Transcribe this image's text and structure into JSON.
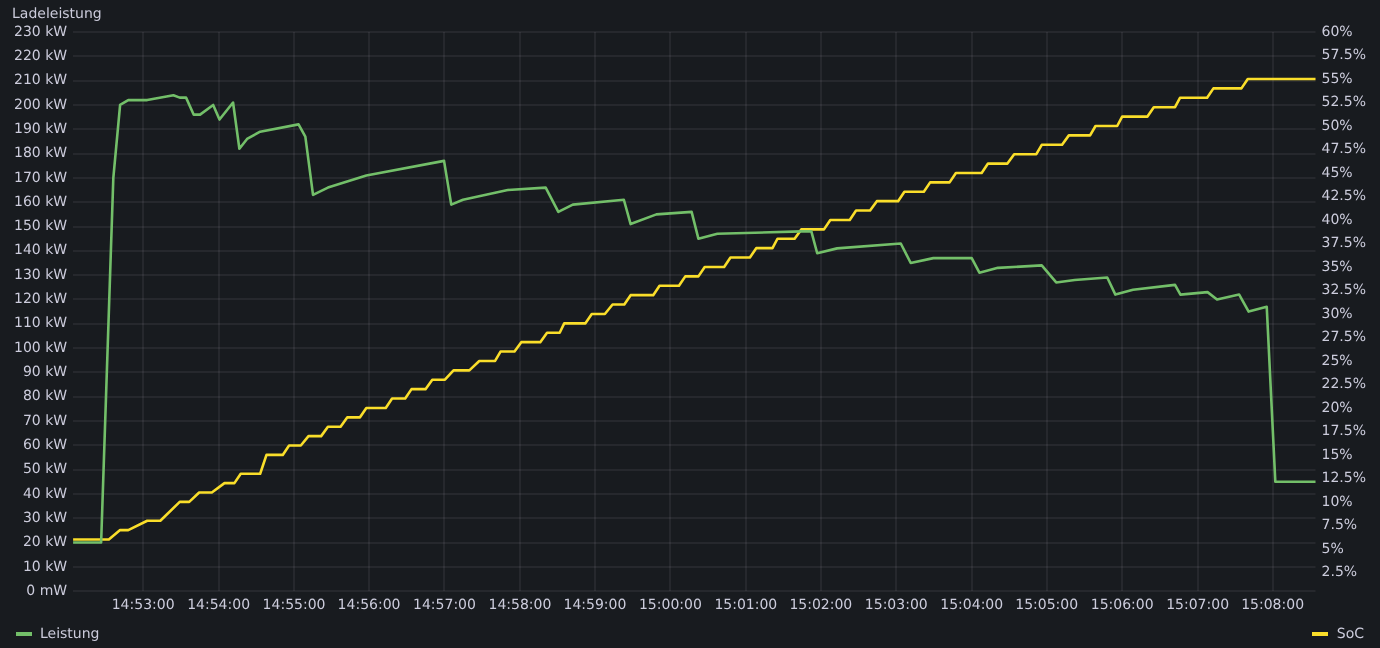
{
  "chart_data": {
    "type": "line",
    "title": "Ladeleistung",
    "xlim": [
      14.8678,
      15.1428
    ],
    "xticks": [
      {
        "value": 14.8833,
        "label": "14:53:00"
      },
      {
        "value": 14.9,
        "label": "14:54:00"
      },
      {
        "value": 14.9167,
        "label": "14:55:00"
      },
      {
        "value": 14.9333,
        "label": "14:56:00"
      },
      {
        "value": 14.95,
        "label": "14:57:00"
      },
      {
        "value": 14.9667,
        "label": "14:58:00"
      },
      {
        "value": 14.9833,
        "label": "14:59:00"
      },
      {
        "value": 15,
        "label": "15:00:00"
      },
      {
        "value": 15.0167,
        "label": "15:01:00"
      },
      {
        "value": 15.0333,
        "label": "15:02:00"
      },
      {
        "value": 15.05,
        "label": "15:03:00"
      },
      {
        "value": 15.0667,
        "label": "15:04:00"
      },
      {
        "value": 15.0833,
        "label": "15:05:00"
      },
      {
        "value": 15.1,
        "label": "15:06:00"
      },
      {
        "value": 15.1167,
        "label": "15:07:00"
      },
      {
        "value": 15.1333,
        "label": "15:08:00"
      }
    ],
    "ylim": [
      0,
      230
    ],
    "yticks": [
      {
        "value": 0,
        "label": "0 mW"
      },
      {
        "value": 10,
        "label": "10 kW"
      },
      {
        "value": 20,
        "label": "20 kW"
      },
      {
        "value": 30,
        "label": "30 kW"
      },
      {
        "value": 40,
        "label": "40 kW"
      },
      {
        "value": 50,
        "label": "50 kW"
      },
      {
        "value": 60,
        "label": "60 kW"
      },
      {
        "value": 70,
        "label": "70 kW"
      },
      {
        "value": 80,
        "label": "80 kW"
      },
      {
        "value": 90,
        "label": "90 kW"
      },
      {
        "value": 100,
        "label": "100 kW"
      },
      {
        "value": 110,
        "label": "110 kW"
      },
      {
        "value": 120,
        "label": "120 kW"
      },
      {
        "value": 130,
        "label": "130 kW"
      },
      {
        "value": 140,
        "label": "140 kW"
      },
      {
        "value": 150,
        "label": "150 kW"
      },
      {
        "value": 160,
        "label": "160 kW"
      },
      {
        "value": 170,
        "label": "170 kW"
      },
      {
        "value": 180,
        "label": "180 kW"
      },
      {
        "value": 190,
        "label": "190 kW"
      },
      {
        "value": 200,
        "label": "200 kW"
      },
      {
        "value": 210,
        "label": "210 kW"
      },
      {
        "value": 220,
        "label": "220 kW"
      },
      {
        "value": 230,
        "label": "230 kW"
      }
    ],
    "y2lim": [
      0.5,
      60
    ],
    "y2ticks": [
      {
        "value": 2.5,
        "label": "2.5%"
      },
      {
        "value": 5,
        "label": "5%"
      },
      {
        "value": 7.5,
        "label": "7.5%"
      },
      {
        "value": 10,
        "label": "10%"
      },
      {
        "value": 12.5,
        "label": "12.5%"
      },
      {
        "value": 15,
        "label": "15%"
      },
      {
        "value": 17.5,
        "label": "17.5%"
      },
      {
        "value": 20,
        "label": "20%"
      },
      {
        "value": 22.5,
        "label": "22.5%"
      },
      {
        "value": 25,
        "label": "25%"
      },
      {
        "value": 27.5,
        "label": "27.5%"
      },
      {
        "value": 30,
        "label": "30%"
      },
      {
        "value": 32.5,
        "label": "32.5%"
      },
      {
        "value": 35,
        "label": "35%"
      },
      {
        "value": 37.5,
        "label": "37.5%"
      },
      {
        "value": 40,
        "label": "40%"
      },
      {
        "value": 42.5,
        "label": "42.5%"
      },
      {
        "value": 45,
        "label": "45%"
      },
      {
        "value": 47.5,
        "label": "47.5%"
      },
      {
        "value": 50,
        "label": "50%"
      },
      {
        "value": 52.5,
        "label": "52.5%"
      },
      {
        "value": 55,
        "label": "55%"
      },
      {
        "value": 57.5,
        "label": "57.5%"
      },
      {
        "value": 60,
        "label": "60%"
      }
    ],
    "grid": true,
    "legend": "bottom",
    "series": [
      {
        "name": "Leistung",
        "color": "#73bf69",
        "x": [
          14.8678,
          14.874,
          14.8767,
          14.8782,
          14.88,
          14.8842,
          14.89,
          14.8914,
          14.8928,
          14.8945,
          14.8959,
          14.8988,
          14.9002,
          14.9032,
          14.9046,
          14.9063,
          14.9092,
          14.9177,
          14.9192,
          14.9209,
          14.9242,
          14.9327,
          14.9499,
          14.9515,
          14.9541,
          14.964,
          14.9724,
          14.9752,
          14.9784,
          14.9897,
          14.9912,
          14.9969,
          15.0047,
          15.0062,
          15.0104,
          15.029,
          15.0312,
          15.0325,
          15.0369,
          15.051,
          15.0532,
          15.0582,
          15.0667,
          15.0684,
          15.0725,
          15.0822,
          15.0854,
          15.0895,
          15.0967,
          15.0985,
          15.1024,
          15.1117,
          15.1129,
          15.1189,
          15.121,
          15.1259,
          15.128,
          15.132,
          15.1339,
          15.1428
        ],
        "values": [
          20,
          20,
          170,
          200,
          202,
          202,
          204,
          203,
          203,
          196,
          196,
          200,
          194,
          201,
          182,
          186,
          189,
          192,
          187,
          163,
          166,
          171,
          177,
          159,
          161,
          165,
          166,
          156,
          159,
          161,
          151,
          155,
          156,
          145,
          147,
          148,
          148,
          139,
          141,
          143,
          135,
          137,
          137,
          131,
          133,
          134,
          127,
          128,
          129,
          122,
          124,
          126,
          122,
          123,
          120,
          122,
          115,
          117,
          45,
          45
        ]
      },
      {
        "name": "SoC",
        "color": "#fade2a",
        "axis": "y2",
        "x": [
          14.8678,
          14.8757,
          14.8782,
          14.88,
          14.8842,
          14.8871,
          14.8914,
          14.8935,
          14.8957,
          14.8985,
          14.9013,
          14.9035,
          14.9049,
          14.9092,
          14.9106,
          14.9142,
          14.9156,
          14.9182,
          14.9199,
          14.9227,
          14.9242,
          14.927,
          14.9285,
          14.9313,
          14.9327,
          14.937,
          14.9384,
          14.9413,
          14.9427,
          14.9458,
          14.9473,
          14.9501,
          14.952,
          14.9555,
          14.9577,
          14.9612,
          14.9624,
          14.9655,
          14.967,
          14.9712,
          14.9727,
          14.9755,
          14.9765,
          14.9812,
          14.9826,
          14.9855,
          14.9872,
          14.9898,
          14.9912,
          14.9962,
          14.9976,
          15.0019,
          15.0033,
          15.0062,
          15.0076,
          15.0119,
          15.0133,
          15.0176,
          15.019,
          15.0226,
          15.0237,
          15.0275,
          15.029,
          15.034,
          15.0354,
          15.0397,
          15.0411,
          15.0442,
          15.0457,
          15.0504,
          15.0518,
          15.0561,
          15.0575,
          15.0618,
          15.0632,
          15.0689,
          15.0703,
          15.0746,
          15.0761,
          15.081,
          15.0822,
          15.0867,
          15.0882,
          15.0929,
          15.0941,
          15.0989,
          15.1,
          15.1056,
          15.107,
          15.1117,
          15.1128,
          15.1188,
          15.1202,
          15.1264,
          15.1278,
          15.1428
        ],
        "values": [
          6,
          6,
          7,
          7,
          8,
          8,
          10,
          10,
          11,
          11,
          12,
          12,
          13,
          13,
          15,
          15,
          16,
          16,
          17,
          17,
          18,
          18,
          19,
          19,
          20,
          20,
          21,
          21,
          22,
          22,
          23,
          23,
          24,
          24,
          25,
          25,
          26,
          26,
          27,
          27,
          28,
          28,
          29,
          29,
          30,
          30,
          31,
          31,
          32,
          32,
          33,
          33,
          34,
          34,
          35,
          35,
          36,
          36,
          37,
          37,
          38,
          38,
          39,
          39,
          40,
          40,
          41,
          41,
          42,
          42,
          43,
          43,
          44,
          44,
          45,
          45,
          46,
          46,
          47,
          47,
          48,
          48,
          49,
          49,
          50,
          50,
          51,
          51,
          52,
          52,
          53,
          53,
          54,
          54,
          55,
          55
        ]
      }
    ]
  }
}
